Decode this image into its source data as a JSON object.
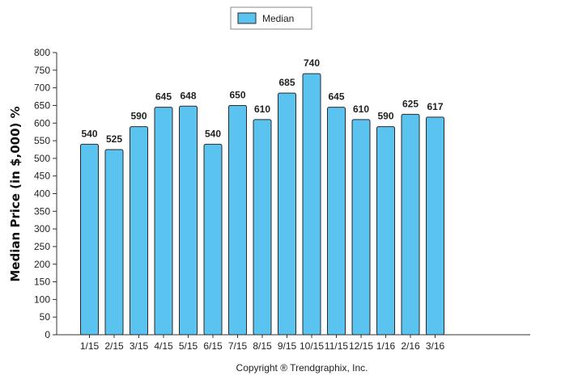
{
  "chart_data": {
    "type": "bar",
    "ylabel": "Median Price (in $,000) %",
    "categories": [
      "1/15",
      "2/15",
      "3/15",
      "4/15",
      "5/15",
      "6/15",
      "7/15",
      "8/15",
      "9/15",
      "10/15",
      "11/15",
      "12/15",
      "1/16",
      "2/16",
      "3/16"
    ],
    "series": [
      {
        "name": "Median",
        "values": [
          540,
          525,
          590,
          645,
          648,
          540,
          650,
          610,
          685,
          740,
          645,
          610,
          590,
          625,
          617
        ]
      }
    ],
    "ylim": [
      0,
      800
    ],
    "yticks": [
      0,
      50,
      100,
      150,
      200,
      250,
      300,
      350,
      400,
      450,
      500,
      550,
      600,
      650,
      700,
      750,
      800
    ],
    "grid": false,
    "legend_position": "top-center",
    "bar_color": "#5BC3F0",
    "bar_border_color": "#2a2a2a"
  },
  "footer": {
    "copyright": "Copyright ® Trendgraphix, Inc."
  }
}
